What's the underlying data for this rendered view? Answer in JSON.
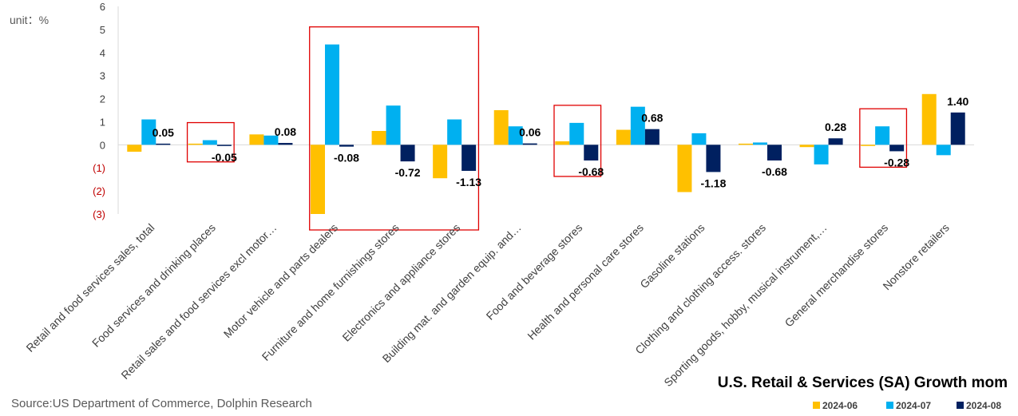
{
  "unit_label": "unit：%",
  "source": "Source:US Department of Commerce, Dolphin Research",
  "colors": {
    "s2024_06": "#FFC000",
    "s2024_07": "#00B0F0",
    "s2024_08": "#002060",
    "highlight": "#E00000",
    "neg_tick": "#C00000"
  },
  "chart_data": {
    "type": "bar",
    "title": "U.S. Retail & Services (SA) Growth mom",
    "xlabel": "",
    "ylabel": "",
    "ylim": [
      -3,
      6
    ],
    "yticks": [
      {
        "v": 6,
        "label": "6"
      },
      {
        "v": 5,
        "label": "5"
      },
      {
        "v": 4,
        "label": "4"
      },
      {
        "v": 3,
        "label": "3"
      },
      {
        "v": 2,
        "label": "2"
      },
      {
        "v": 1,
        "label": "1"
      },
      {
        "v": 0,
        "label": "0"
      },
      {
        "v": -1,
        "label": "(1)"
      },
      {
        "v": -2,
        "label": "(2)"
      },
      {
        "v": -3,
        "label": "(3)"
      }
    ],
    "categories": [
      "Retail and food services sales, total",
      "Food services and drinking places",
      "Retail sales and food services excl motor…",
      "Motor vehicle and parts dealers",
      "Furniture and home furnishings stores",
      "Electronics and appliance stores",
      "Building mat. and garden equip. and…",
      "Food and beverage stores",
      "Health and personal care stores",
      "Gasoline stations",
      "Clothing and clothing access. stores",
      "Sporting goods, hobby, musical instrument,…",
      "General merchandise stores",
      "Nonstore retailers"
    ],
    "series": [
      {
        "name": "2024-06",
        "values": [
          -0.3,
          0.05,
          0.45,
          -3.0,
          0.6,
          -1.45,
          1.5,
          0.15,
          0.65,
          -2.05,
          0.05,
          -0.1,
          0.0,
          2.2
        ]
      },
      {
        "name": "2024-07",
        "values": [
          1.1,
          0.2,
          0.4,
          4.35,
          1.7,
          1.1,
          0.8,
          0.95,
          1.65,
          0.5,
          0.1,
          -0.85,
          0.8,
          -0.45
        ]
      },
      {
        "name": "2024-08",
        "values": [
          0.05,
          -0.05,
          0.08,
          -0.08,
          -0.72,
          -1.13,
          0.06,
          -0.68,
          0.68,
          -1.18,
          -0.68,
          0.28,
          -0.28,
          1.4
        ]
      }
    ],
    "data_labels": [
      "0.05",
      "-0.05",
      "0.08",
      "-0.08",
      "-0.72",
      "-1.13",
      "0.06",
      "-0.68",
      "0.68",
      "-1.18",
      "-0.68",
      "0.28",
      "-0.28",
      "1.40"
    ],
    "legend_position": "bottom-right",
    "highlighted_categories": [
      1,
      3,
      4,
      5,
      7,
      12
    ]
  }
}
